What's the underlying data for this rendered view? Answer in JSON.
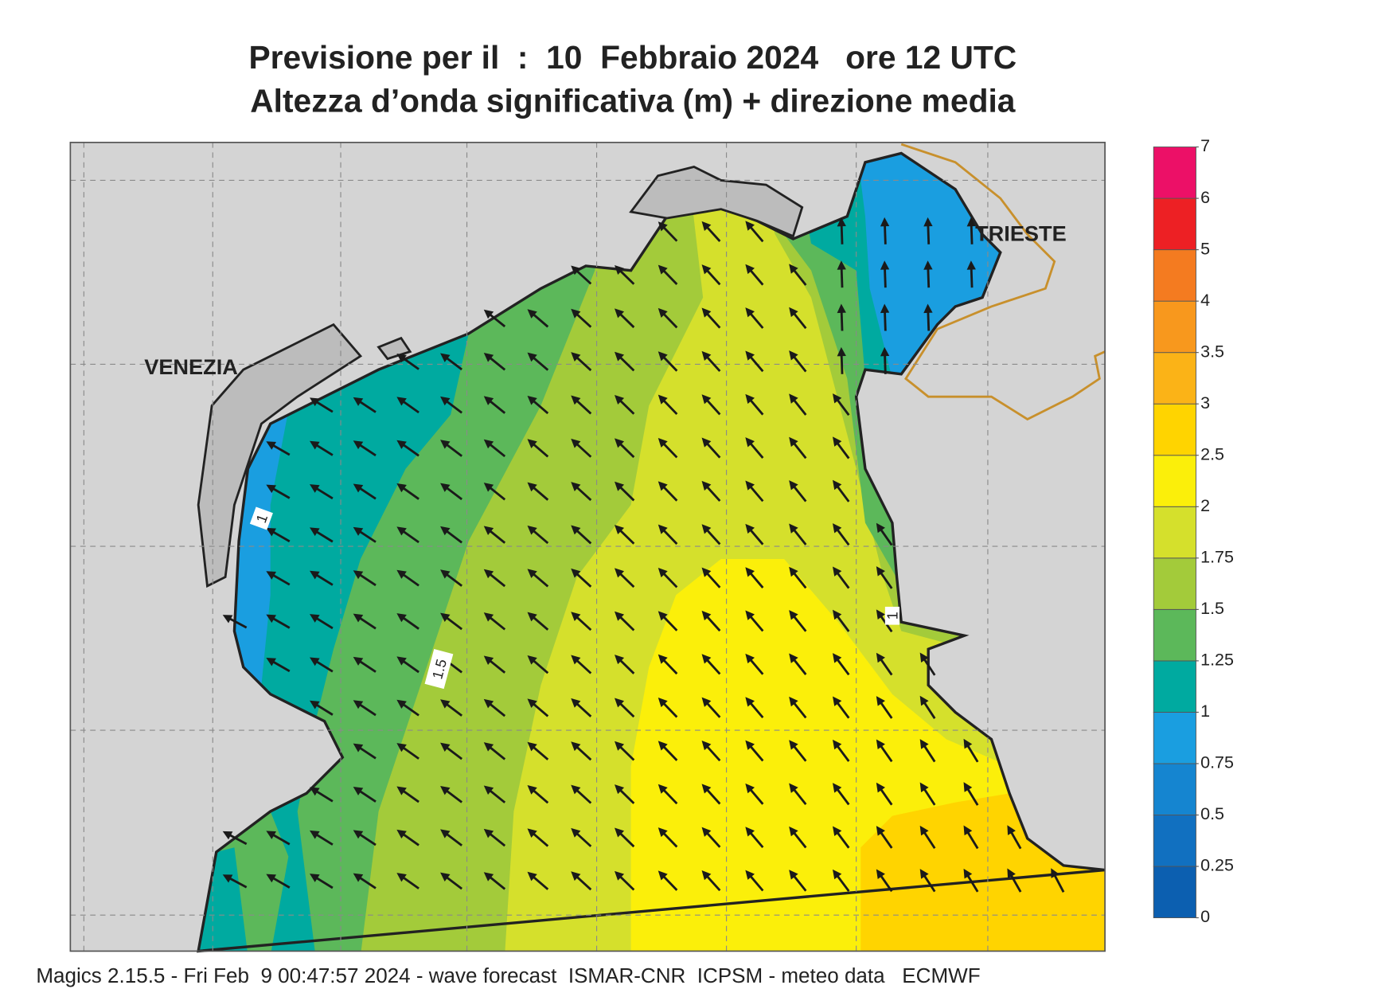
{
  "header": {
    "title": "Previsione per il  :  10  Febbraio 2024   ore 12 UTC",
    "subtitle": "Altezza d’onda significativa (m) + direzione media"
  },
  "map": {
    "places": [
      "VENEZIA",
      "TRIESTE"
    ],
    "contour_labels": [
      "1",
      "1.5",
      "1"
    ]
  },
  "colorbar": {
    "levels": [
      0,
      0.25,
      0.5,
      0.75,
      1,
      1.25,
      1.5,
      1.75,
      2,
      2.5,
      3,
      3.5,
      4,
      5,
      6,
      7
    ],
    "colors": [
      "#0c5fb0",
      "#1170c0",
      "#1585d0",
      "#1a9ee0",
      "#00aaa0",
      "#5cb85a",
      "#a3cb3a",
      "#d5e02c",
      "#fbef0a",
      "#ffd400",
      "#fbb317",
      "#f8981d",
      "#f47b20",
      "#ed2024",
      "#ec1067"
    ]
  },
  "footer": "Magics 2.15.5 - Fri Feb  9 00:47:57 2024 - wave forecast  ISMAR-CNR  ICPSM - meteo data   ECMWF"
}
